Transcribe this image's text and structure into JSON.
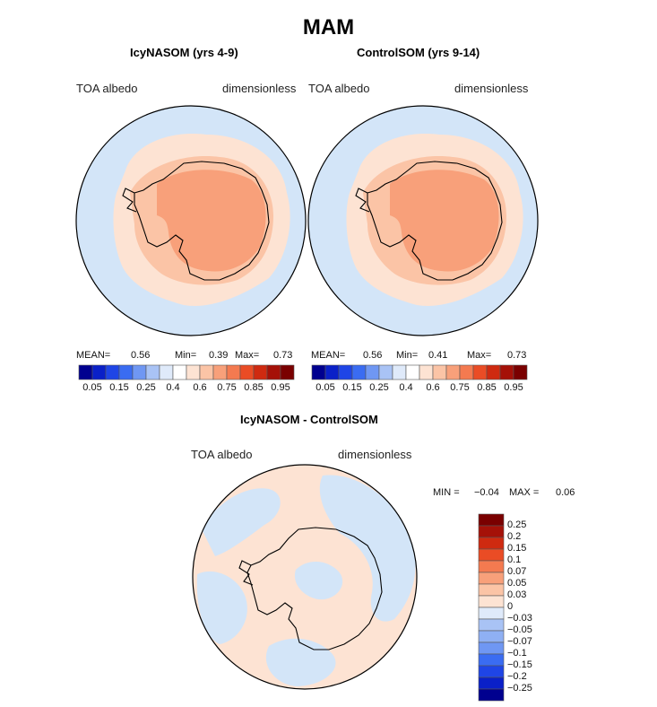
{
  "chart_data": [
    {
      "type": "heatmap",
      "projection": "south-polar-stereographic",
      "title": "IcyNASOM (yrs 4-9)",
      "variable": "TOA albedo",
      "units": "dimensionless",
      "stats": {
        "mean_label": "MEAN=",
        "mean": "0.56",
        "min_label": "Min=",
        "min": "0.39",
        "max_label": "Max=",
        "max": "0.73"
      },
      "colorbar": {
        "orientation": "horizontal",
        "tick_labels": [
          "0.05",
          "0.15",
          "0.25",
          "0.4",
          "0.6",
          "0.75",
          "0.85",
          "0.95"
        ]
      }
    },
    {
      "type": "heatmap",
      "projection": "south-polar-stereographic",
      "title": "ControlSOM (yrs 9-14)",
      "variable": "TOA albedo",
      "units": "dimensionless",
      "stats": {
        "mean_label": "MEAN=",
        "mean": "0.56",
        "min_label": "Min=",
        "min": "0.41",
        "max_label": "Max=",
        "max": "0.73"
      },
      "colorbar": {
        "orientation": "horizontal",
        "tick_labels": [
          "0.05",
          "0.15",
          "0.25",
          "0.4",
          "0.6",
          "0.75",
          "0.85",
          "0.95"
        ]
      }
    },
    {
      "type": "heatmap",
      "projection": "south-polar-stereographic",
      "title": "IcyNASOM - ControlSOM",
      "variable": "TOA albedo",
      "units": "dimensionless",
      "stats": {
        "min_label": "MIN =",
        "min": "−0.04",
        "max_label": "MAX =",
        "max": "0.06"
      },
      "colorbar": {
        "orientation": "vertical",
        "tick_labels": [
          "0.25",
          "0.2",
          "0.15",
          "0.1",
          "0.07",
          "0.05",
          "0.03",
          "0",
          "−0.03",
          "−0.05",
          "−0.07",
          "−0.1",
          "−0.15",
          "−0.2",
          "−0.25"
        ]
      }
    }
  ],
  "page_title": "MAM",
  "colors": {
    "abs_palette": [
      "#00008f",
      "#0a20c8",
      "#1f45e6",
      "#3a6cf2",
      "#6f97f3",
      "#a9c3f5",
      "#dfeafa",
      "#ffffff",
      "#fde3d3",
      "#fbc4a6",
      "#f8a07a",
      "#f47a50",
      "#ea4c25",
      "#cf2a10",
      "#a51108",
      "#7a0000"
    ],
    "diff_palette": [
      "#7a0000",
      "#a51108",
      "#cf2a10",
      "#ea4c25",
      "#f47a50",
      "#f8a07a",
      "#fbc4a6",
      "#fde3d3",
      "#dfeafa",
      "#a9c3f5",
      "#8fb0f3",
      "#6f97f3",
      "#3a6cf2",
      "#1f45e6",
      "#0a20c8",
      "#00008f"
    ],
    "ocean": "#d3e5f8",
    "ring": "#fde3d3",
    "mid": "#fbc4a6",
    "core": "#f8a07a",
    "coast": "#000000"
  }
}
